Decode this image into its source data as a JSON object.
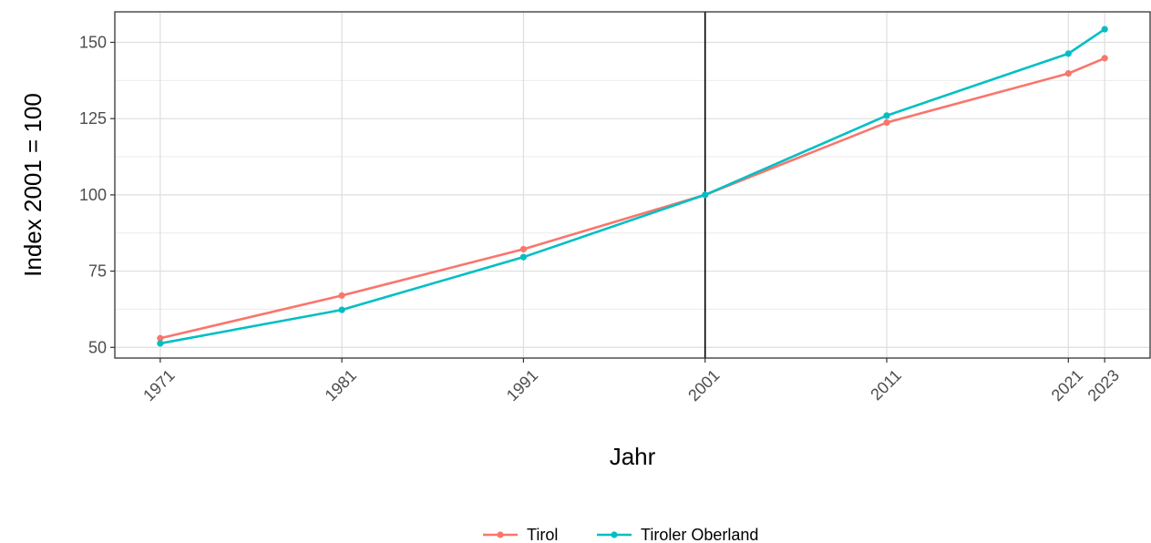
{
  "chart_data": {
    "type": "line",
    "xlabel": "Jahr",
    "ylabel": "Index 2001 = 100",
    "x": [
      1971,
      1981,
      1991,
      2001,
      2011,
      2021,
      2023
    ],
    "xticks": [
      "1971",
      "1981",
      "1991",
      "2001",
      "2011",
      "2021",
      "2023"
    ],
    "yticks": [
      "50",
      "75",
      "100",
      "125",
      "150"
    ],
    "xlim": [
      1968.5,
      2025.5
    ],
    "ylim": [
      46.5,
      160
    ],
    "grid": true,
    "reference_line_x": 2001,
    "legend_position": "bottom",
    "series": [
      {
        "name": "Tirol",
        "color": "#F8766D",
        "values": [
          53.0,
          67.0,
          82.2,
          100.0,
          123.7,
          139.8,
          144.8
        ]
      },
      {
        "name": "Tiroler Oberland",
        "color": "#00BFC4",
        "values": [
          51.3,
          62.3,
          79.6,
          100.0,
          126.0,
          146.3,
          154.3
        ]
      }
    ]
  }
}
